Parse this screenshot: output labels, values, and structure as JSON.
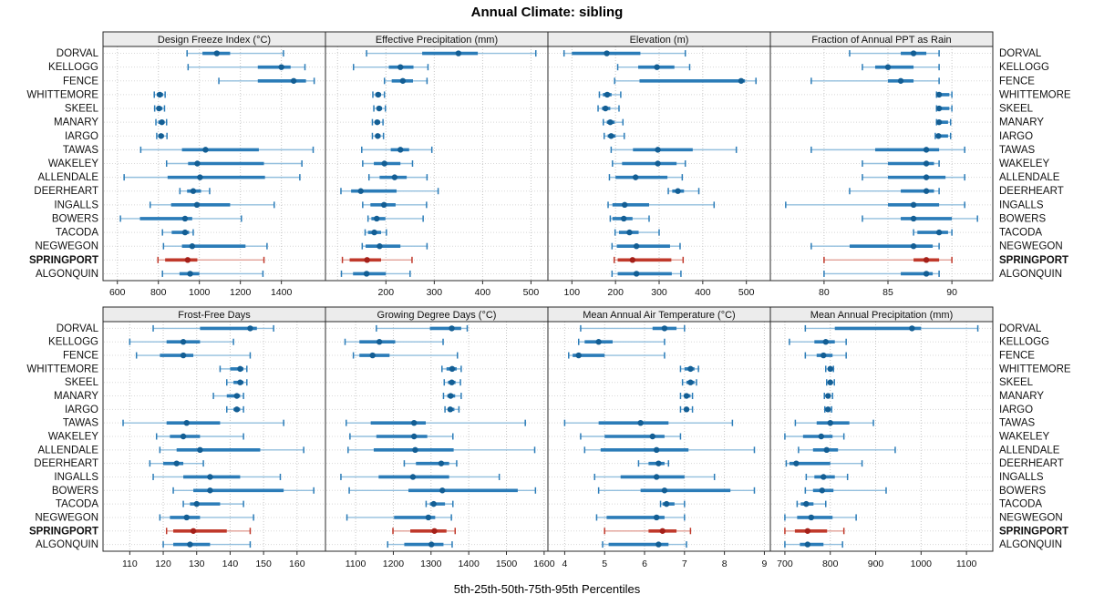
{
  "title": "Annual Climate: sibling",
  "footer_label": "5th-25th-50th-75th-95th Percentiles",
  "colors": {
    "blue_range": "#93bfde",
    "blue_box": "#2b7cb8",
    "blue_dot": "#135e94",
    "red_range": "#e2a097",
    "red_box": "#c0392b",
    "red_dot": "#a52019",
    "grid": "#c6c6c6",
    "row_grid": "#d8d8d8",
    "panel_border": "#2a2a2a",
    "header_bg": "#ececec",
    "text": "#111111"
  },
  "chart_data": {
    "type": "scatter",
    "subtype": "percentile-dot-plot",
    "percentile_levels": [
      5,
      25,
      50,
      75,
      95
    ],
    "legend_note": "dot = 50th percentile, thick bar = 25th-75th, thin line with caps = 5th-95th",
    "highlight_site": "SPRINGPORT",
    "sites": [
      "DORVAL",
      "KELLOGG",
      "FENCE",
      "WHITTEMORE",
      "SKEEL",
      "MANARY",
      "IARGO",
      "TAWAS",
      "WAKELEY",
      "ALLENDALE",
      "DEERHEART",
      "INGALLS",
      "BOWERS",
      "TACODA",
      "NEGWEGON",
      "SPRINGPORT",
      "ALGONQUIN"
    ],
    "panels": [
      {
        "title": "Design Freeze Index (°C)",
        "ticks": [
          600,
          800,
          1000,
          1200,
          1400
        ],
        "xlim": [
          530,
          1615
        ],
        "values": [
          [
            940,
            1015,
            1085,
            1150,
            1410
          ],
          [
            945,
            1285,
            1400,
            1445,
            1515
          ],
          [
            1095,
            1285,
            1460,
            1520,
            1560
          ],
          [
            780,
            792,
            807,
            823,
            833
          ],
          [
            782,
            793,
            803,
            820,
            830
          ],
          [
            788,
            800,
            817,
            830,
            840
          ],
          [
            792,
            803,
            813,
            827,
            842
          ],
          [
            714,
            915,
            1030,
            1290,
            1555
          ],
          [
            840,
            945,
            990,
            1315,
            1500
          ],
          [
            633,
            845,
            1003,
            1320,
            1490
          ],
          [
            905,
            940,
            970,
            1008,
            1050
          ],
          [
            760,
            862,
            988,
            1150,
            1365
          ],
          [
            615,
            710,
            930,
            965,
            1205
          ],
          [
            820,
            865,
            930,
            950,
            970
          ],
          [
            825,
            915,
            965,
            1225,
            1330
          ],
          [
            798,
            833,
            943,
            990,
            1315
          ],
          [
            820,
            903,
            955,
            1000,
            1310
          ]
        ]
      },
      {
        "title": "Effective Precipitation (mm)",
        "ticks": [
          200,
          300,
          400,
          500
        ],
        "grid_extra": [
          100
        ],
        "xlim": [
          75,
          535
        ],
        "values": [
          [
            160,
            275,
            350,
            390,
            510
          ],
          [
            133,
            206,
            230,
            257,
            287
          ],
          [
            197,
            212,
            235,
            256,
            285
          ],
          [
            173,
            178,
            184,
            190,
            197
          ],
          [
            175,
            181,
            186,
            192,
            199
          ],
          [
            172,
            177,
            182,
            188,
            194
          ],
          [
            172,
            178,
            183,
            189,
            195
          ],
          [
            150,
            210,
            230,
            248,
            295
          ],
          [
            152,
            175,
            197,
            230,
            255
          ],
          [
            165,
            187,
            218,
            243,
            285
          ],
          [
            107,
            128,
            148,
            222,
            308
          ],
          [
            152,
            168,
            196,
            220,
            284
          ],
          [
            163,
            170,
            181,
            199,
            277
          ],
          [
            157,
            163,
            176,
            190,
            201
          ],
          [
            151,
            158,
            187,
            230,
            285
          ],
          [
            110,
            125,
            161,
            190,
            254
          ],
          [
            108,
            132,
            160,
            200,
            250
          ]
        ]
      },
      {
        "title": "Elevation (m)",
        "ticks": [
          100,
          200,
          300,
          400,
          500
        ],
        "xlim": [
          45,
          555
        ],
        "values": [
          [
            82,
            100,
            180,
            257,
            360
          ],
          [
            205,
            252,
            295,
            335,
            370
          ],
          [
            198,
            255,
            488,
            497,
            522
          ],
          [
            163,
            171,
            181,
            191,
            212
          ],
          [
            160,
            169,
            177,
            188,
            208
          ],
          [
            172,
            180,
            188,
            198,
            217
          ],
          [
            174,
            182,
            190,
            200,
            220
          ],
          [
            190,
            240,
            297,
            377,
            477
          ],
          [
            193,
            215,
            297,
            340,
            360
          ],
          [
            186,
            200,
            246,
            319,
            353
          ],
          [
            321,
            330,
            343,
            357,
            391
          ],
          [
            183,
            193,
            221,
            277,
            426
          ],
          [
            188,
            193,
            219,
            239,
            277
          ],
          [
            199,
            208,
            232,
            253,
            300
          ],
          [
            192,
            203,
            248,
            325,
            348
          ],
          [
            197,
            205,
            239,
            328,
            355
          ],
          [
            192,
            205,
            248,
            329,
            350
          ]
        ]
      },
      {
        "title": "Fraction of Annual PPT as Rain",
        "ticks": [
          80,
          85,
          90
        ],
        "xlim": [
          75.8,
          93.2
        ],
        "values": [
          [
            82,
            86,
            87,
            88,
            89
          ],
          [
            83,
            84,
            85,
            87,
            89
          ],
          [
            79,
            85,
            86,
            87,
            89
          ],
          [
            88.8,
            88.9,
            89.0,
            89.8,
            90.0
          ],
          [
            88.8,
            88.9,
            89.0,
            89.8,
            90.0
          ],
          [
            88.8,
            88.9,
            89.0,
            89.7,
            89.9
          ],
          [
            88.7,
            88.85,
            88.95,
            89.7,
            89.9
          ],
          [
            79,
            84,
            88,
            89,
            91
          ],
          [
            83,
            85,
            88,
            88.6,
            89
          ],
          [
            83,
            85,
            88,
            89.5,
            91
          ],
          [
            82,
            86,
            88,
            88.6,
            89
          ],
          [
            77,
            85,
            87,
            89,
            91
          ],
          [
            83,
            86,
            87,
            90,
            92
          ],
          [
            87,
            87.3,
            89,
            89.7,
            90
          ],
          [
            79,
            82,
            87,
            88.5,
            89
          ],
          [
            80,
            87,
            88,
            89,
            90
          ],
          [
            80,
            86,
            88,
            88.5,
            89
          ]
        ]
      },
      {
        "title": "Frost-Free Days",
        "ticks": [
          110,
          120,
          130,
          140,
          150,
          160
        ],
        "xlim": [
          102,
          168.5
        ],
        "values": [
          [
            117,
            131,
            146,
            148,
            153
          ],
          [
            110,
            121,
            126,
            131,
            141
          ],
          [
            112,
            119,
            126,
            129,
            146
          ],
          [
            137,
            140,
            143,
            144,
            145
          ],
          [
            139,
            141,
            143,
            144,
            145
          ],
          [
            135,
            139,
            142,
            143,
            144
          ],
          [
            139,
            141,
            142,
            143,
            144
          ],
          [
            108,
            121,
            127,
            137,
            156
          ],
          [
            118,
            122,
            126,
            131,
            144
          ],
          [
            119,
            124,
            131,
            149,
            162
          ],
          [
            116,
            120,
            124,
            126,
            132
          ],
          [
            117,
            126,
            134,
            143,
            155
          ],
          [
            123,
            129,
            134,
            156,
            165
          ],
          [
            126,
            128,
            130,
            137,
            144
          ],
          [
            119,
            122,
            127,
            131,
            147
          ],
          [
            121,
            123,
            129,
            139,
            146
          ],
          [
            120,
            123,
            128,
            134,
            146
          ]
        ]
      },
      {
        "title": "Growing Degree Days (°C)",
        "ticks": [
          1100,
          1200,
          1300,
          1400,
          1500,
          1600
        ],
        "xlim": [
          1020,
          1610
        ],
        "values": [
          [
            1155,
            1297,
            1355,
            1380,
            1396
          ],
          [
            1072,
            1110,
            1163,
            1205,
            1332
          ],
          [
            1094,
            1110,
            1145,
            1190,
            1370
          ],
          [
            1329,
            1341,
            1356,
            1368,
            1380
          ],
          [
            1335,
            1345,
            1355,
            1365,
            1378
          ],
          [
            1333,
            1343,
            1352,
            1364,
            1380
          ],
          [
            1337,
            1345,
            1351,
            1362,
            1374
          ],
          [
            1075,
            1140,
            1255,
            1286,
            1550
          ],
          [
            1085,
            1155,
            1255,
            1290,
            1358
          ],
          [
            1080,
            1148,
            1258,
            1360,
            1575
          ],
          [
            1229,
            1260,
            1327,
            1348,
            1368
          ],
          [
            1061,
            1161,
            1252,
            1348,
            1481
          ],
          [
            1083,
            1240,
            1330,
            1530,
            1577
          ],
          [
            1287,
            1297,
            1307,
            1337,
            1358
          ],
          [
            1077,
            1202,
            1293,
            1311,
            1354
          ],
          [
            1199,
            1245,
            1309,
            1341,
            1364
          ],
          [
            1185,
            1229,
            1301,
            1333,
            1356
          ]
        ]
      },
      {
        "title": "Mean Annual Air Temperature (°C)",
        "ticks": [
          4,
          5,
          6,
          7,
          8,
          9
        ],
        "xlim": [
          3.58,
          9.15
        ],
        "values": [
          [
            4.4,
            6.2,
            6.5,
            6.8,
            7.0
          ],
          [
            4.35,
            4.5,
            4.85,
            5.2,
            6.5
          ],
          [
            4.1,
            4.2,
            4.35,
            5.0,
            6.5
          ],
          [
            6.9,
            7.0,
            7.15,
            7.25,
            7.35
          ],
          [
            6.95,
            7.05,
            7.15,
            7.25,
            7.3
          ],
          [
            6.9,
            7.0,
            7.05,
            7.15,
            7.2
          ],
          [
            6.9,
            7.0,
            7.05,
            7.1,
            7.2
          ],
          [
            4.0,
            4.85,
            5.9,
            6.6,
            8.2
          ],
          [
            4.4,
            5.0,
            6.2,
            6.5,
            6.9
          ],
          [
            4.5,
            4.9,
            6.3,
            7.1,
            8.75
          ],
          [
            5.85,
            6.1,
            6.35,
            6.5,
            6.6
          ],
          [
            4.75,
            5.4,
            6.3,
            7.0,
            7.75
          ],
          [
            4.85,
            5.9,
            6.5,
            8.15,
            8.75
          ],
          [
            6.4,
            6.45,
            6.55,
            6.75,
            7.0
          ],
          [
            4.8,
            5.05,
            6.3,
            6.5,
            7.0
          ],
          [
            5.0,
            6.1,
            6.45,
            6.8,
            7.15
          ],
          [
            4.95,
            5.1,
            6.35,
            6.6,
            7.05
          ]
        ]
      },
      {
        "title": "Mean Annual Precipitation (mm)",
        "ticks": [
          700,
          800,
          900,
          1000,
          1100
        ],
        "xlim": [
          668,
          1158
        ],
        "values": [
          [
            745,
            810,
            980,
            1000,
            1125
          ],
          [
            710,
            765,
            790,
            810,
            835
          ],
          [
            745,
            770,
            785,
            805,
            835
          ],
          [
            790,
            795,
            800,
            803,
            807
          ],
          [
            792,
            796,
            800,
            804,
            809
          ],
          [
            787,
            791,
            795,
            800,
            805
          ],
          [
            788,
            792,
            795,
            799,
            803
          ],
          [
            723,
            770,
            800,
            842,
            895
          ],
          [
            700,
            740,
            780,
            805,
            830
          ],
          [
            730,
            762,
            792,
            817,
            943
          ],
          [
            703,
            710,
            725,
            800,
            870
          ],
          [
            747,
            765,
            785,
            810,
            838
          ],
          [
            745,
            762,
            782,
            807,
            923
          ],
          [
            727,
            735,
            747,
            763,
            790
          ],
          [
            700,
            727,
            758,
            805,
            857
          ],
          [
            700,
            722,
            750,
            793,
            830
          ],
          [
            700,
            733,
            750,
            785,
            827
          ]
        ]
      }
    ]
  }
}
